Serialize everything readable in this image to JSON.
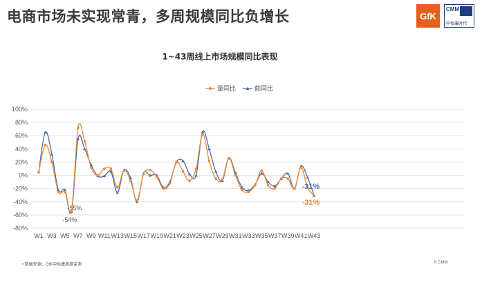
{
  "page": {
    "headline": "电商市场未实现常青，多周规模同比负增长",
    "logo_gfk": "GfK",
    "logo_cmm": "CMM",
    "logo_cmm_cn": "中怡康时代",
    "source_note": "• 数据来源：GfK中怡康周度监测",
    "copyright": "© CMM"
  },
  "chart_data": {
    "type": "line",
    "title": "1~43周线上市场规模同比表现",
    "xlabel": "",
    "ylabel": "",
    "ylim": [
      -80,
      100
    ],
    "yticks": [
      -80,
      -60,
      -40,
      -20,
      0,
      20,
      40,
      60,
      80,
      100
    ],
    "ytick_labels": [
      "-80%",
      "-60%",
      "-40%",
      "-20%",
      "0%",
      "20%",
      "40%",
      "60%",
      "80%",
      "100%"
    ],
    "x": [
      "W1",
      "W2",
      "W3",
      "W4",
      "W5",
      "W6",
      "W7",
      "W8",
      "W9",
      "W10",
      "W11",
      "W12",
      "W13",
      "W14",
      "W15",
      "W16",
      "W17",
      "W18",
      "W19",
      "W20",
      "W21",
      "W22",
      "W23",
      "W24",
      "W25",
      "W26",
      "W27",
      "W28",
      "W29",
      "W30",
      "W31",
      "W32",
      "W33",
      "W34",
      "W35",
      "W36",
      "W37",
      "W38",
      "W39",
      "W40",
      "W41",
      "W42",
      "W43"
    ],
    "xtick_labels": [
      "W1",
      "W3",
      "W5",
      "W7",
      "W9",
      "W11",
      "W13",
      "W15",
      "W17",
      "W19",
      "W21",
      "W23",
      "W25",
      "W27",
      "W29",
      "W31",
      "W33",
      "W35",
      "W37",
      "W39",
      "W41",
      "W43"
    ],
    "legend_position": "top-center",
    "grid": true,
    "colors": {
      "series1": "#ee8833",
      "series2": "#4a6baa",
      "grid": "#e4e4e4",
      "axis_text": "#595959"
    },
    "series": [
      {
        "name": "量同比",
        "values": [
          5,
          46,
          20,
          -25,
          -25,
          -54,
          72,
          52,
          12,
          0,
          10,
          10,
          -18,
          7,
          -8,
          -38,
          2,
          8,
          -2,
          -20,
          -12,
          20,
          6,
          -8,
          10,
          62,
          22,
          -5,
          -6,
          26,
          0,
          -22,
          -25,
          -15,
          7,
          -15,
          -20,
          -5,
          -5,
          -20,
          12,
          -18,
          -31
        ]
      },
      {
        "name": "额同比",
        "values": [
          5,
          65,
          32,
          -22,
          -22,
          -55,
          55,
          40,
          16,
          -1,
          -1,
          6,
          -26,
          8,
          -4,
          -40,
          3,
          0,
          0,
          -18,
          -10,
          20,
          22,
          2,
          0,
          66,
          40,
          6,
          -8,
          26,
          4,
          -18,
          -23,
          -14,
          3,
          -10,
          -16,
          -5,
          3,
          -20,
          14,
          -3,
          -31
        ]
      }
    ],
    "annotations": [
      {
        "text": "-55%",
        "x": "W6",
        "y": -55,
        "series": 1
      },
      {
        "text": "-54%",
        "x": "W6",
        "y": -54,
        "series": 0
      },
      {
        "text": "-31%",
        "x": "W43",
        "y": -31,
        "series": 1
      },
      {
        "text": "-31%",
        "x": "W43",
        "y": -31,
        "series": 0
      }
    ]
  }
}
